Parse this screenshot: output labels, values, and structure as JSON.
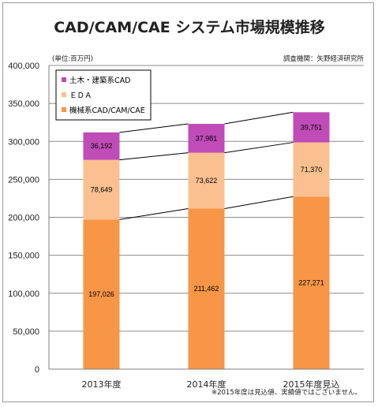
{
  "chart_data": {
    "type": "bar",
    "stacked": true,
    "title": "CAD/CAM/CAE システム市場規模推移",
    "unit_note": "(単位:百万円)",
    "source_note": "調査機関：矢野経済研究所",
    "footnote": "※2015年度は見込値、実績値ではございません。",
    "categories": [
      "2013年度",
      "2014年度",
      "2015年度見込"
    ],
    "ylim": [
      0,
      400000
    ],
    "yticks": [
      0,
      50000,
      100000,
      150000,
      200000,
      250000,
      300000,
      350000,
      400000
    ],
    "ytick_labels": [
      "0",
      "50,000",
      "100,000",
      "150,000",
      "200,000",
      "250,000",
      "300,000",
      "350,000",
      "400,000"
    ],
    "grid": true,
    "legend_position": "top-left",
    "series": [
      {
        "name": "機械系CAD/CAM/CAE",
        "color": "#f79646",
        "values": [
          197026,
          211462,
          227271
        ],
        "labels": [
          "197,026",
          "211,462",
          "227,271"
        ]
      },
      {
        "name": "ＥＤＡ",
        "color": "#fac090",
        "values": [
          78649,
          73622,
          71370
        ],
        "labels": [
          "78,649",
          "73,622",
          "71,370"
        ]
      },
      {
        "name": "土木・建築系CAD",
        "color": "#c04cb8",
        "values": [
          36192,
          37981,
          39751
        ],
        "labels": [
          "36,192",
          "37,981",
          "39,751"
        ]
      }
    ],
    "legend_order": [
      2,
      1,
      0
    ]
  }
}
